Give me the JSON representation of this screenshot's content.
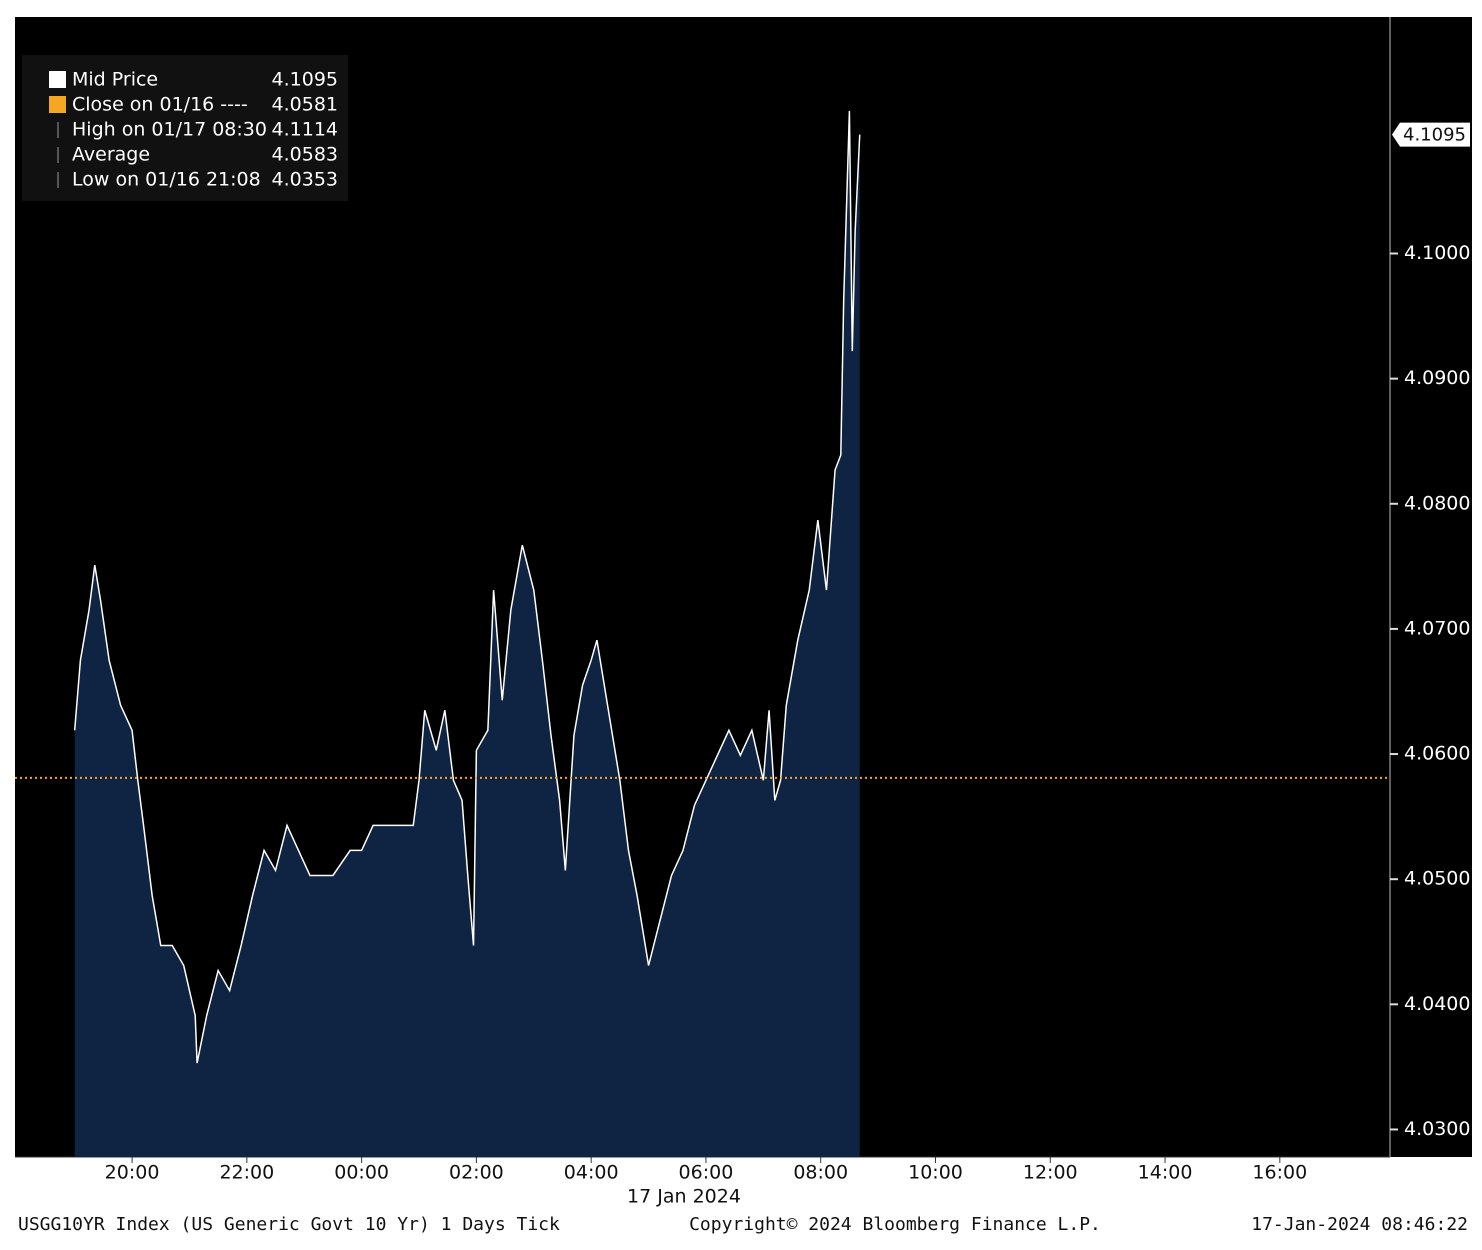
{
  "chart_data": {
    "type": "line",
    "legend": [
      {
        "name": "Mid Price",
        "value": 4.1095,
        "color": "#ffffff"
      },
      {
        "name": "Close on 01/16 ----",
        "value": 4.0581,
        "color": "#f5a623"
      },
      {
        "name": "High on 01/17 08:30",
        "value": 4.1114
      },
      {
        "name": "Average",
        "value": 4.0583
      },
      {
        "name": "Low on 01/16 21:08",
        "value": 4.0353
      }
    ],
    "line_color": "#ffffff",
    "fill_color": "#0f2342",
    "x": [
      19.0,
      19.1,
      19.25,
      19.35,
      19.45,
      19.6,
      19.8,
      20.0,
      20.1,
      20.2,
      20.35,
      20.5,
      20.7,
      20.9,
      21.1,
      21.133,
      21.3,
      21.5,
      21.7,
      21.9,
      22.1,
      22.3,
      22.5,
      22.7,
      22.9,
      23.1,
      23.5,
      23.8,
      24.0,
      24.2,
      24.5,
      24.9,
      25.0,
      25.1,
      25.3,
      25.45,
      25.6,
      25.75,
      25.85,
      25.95,
      26.0,
      26.2,
      26.3,
      26.45,
      26.6,
      26.8,
      27.0,
      27.15,
      27.3,
      27.45,
      27.55,
      27.7,
      27.85,
      28.0,
      28.1,
      28.3,
      28.5,
      28.65,
      28.8,
      29.0,
      29.2,
      29.4,
      29.6,
      29.8,
      30.0,
      30.2,
      30.4,
      30.6,
      30.8,
      31.0,
      31.1,
      31.2,
      31.3,
      31.4,
      31.6,
      31.8,
      31.95,
      32.1,
      32.25,
      32.35,
      32.4,
      32.5,
      32.55,
      32.6,
      32.68
    ],
    "values": [
      4.0619,
      4.0675,
      4.0715,
      4.0751,
      4.0723,
      4.0675,
      4.0639,
      4.0619,
      4.0579,
      4.0543,
      4.0487,
      4.0447,
      4.0447,
      4.0431,
      4.0391,
      4.0353,
      4.0391,
      4.0427,
      4.0411,
      4.0447,
      4.0487,
      4.0523,
      4.0507,
      4.0543,
      4.0523,
      4.0503,
      4.0503,
      4.0523,
      4.0523,
      4.0543,
      4.0543,
      4.0543,
      4.0579,
      4.0635,
      4.0603,
      4.0635,
      4.0579,
      4.0563,
      4.0503,
      4.0447,
      4.0603,
      4.0619,
      4.0731,
      4.0643,
      4.0715,
      4.0767,
      4.0731,
      4.0675,
      4.0615,
      4.0563,
      4.0507,
      4.0615,
      4.0655,
      4.0675,
      4.0691,
      4.0635,
      4.0579,
      4.0523,
      4.0487,
      4.0431,
      4.0467,
      4.0503,
      4.0523,
      4.0559,
      4.0579,
      4.0599,
      4.0619,
      4.0599,
      4.0619,
      4.0579,
      4.0635,
      4.0563,
      4.0579,
      4.0639,
      4.0691,
      4.0731,
      4.0787,
      4.0731,
      4.0827,
      4.0839,
      4.0962,
      4.1114,
      4.0922,
      4.1018,
      4.1095
    ],
    "xlim": [
      17.96,
      41.92
    ],
    "ylim": [
      4.0278,
      4.1189
    ],
    "xticks": [
      {
        "value": 20,
        "label": "20:00"
      },
      {
        "value": 22,
        "label": "22:00"
      },
      {
        "value": 24,
        "label": "00:00"
      },
      {
        "value": 26,
        "label": "02:00"
      },
      {
        "value": 28,
        "label": "04:00"
      },
      {
        "value": 30,
        "label": "06:00"
      },
      {
        "value": 32,
        "label": "08:00"
      },
      {
        "value": 34,
        "label": "10:00"
      },
      {
        "value": 36,
        "label": "12:00"
      },
      {
        "value": 38,
        "label": "14:00"
      },
      {
        "value": 40,
        "label": "16:00"
      }
    ],
    "yticks": [
      {
        "value": 4.03,
        "label": "4.0300"
      },
      {
        "value": 4.04,
        "label": "4.0400"
      },
      {
        "value": 4.05,
        "label": "4.0500"
      },
      {
        "value": 4.06,
        "label": "4.0600"
      },
      {
        "value": 4.07,
        "label": "4.0700"
      },
      {
        "value": 4.08,
        "label": "4.0800"
      },
      {
        "value": 4.09,
        "label": "4.0900"
      },
      {
        "value": 4.1,
        "label": "4.1000"
      }
    ],
    "date_label": "17 Jan 2024",
    "footer": {
      "left": "USGG10YR Index (US Generic Govt 10 Yr) 1 Days  Tick",
      "center": "Copyright© 2024 Bloomberg Finance L.P.",
      "right": "17-Jan-2024 08:46:22"
    }
  }
}
